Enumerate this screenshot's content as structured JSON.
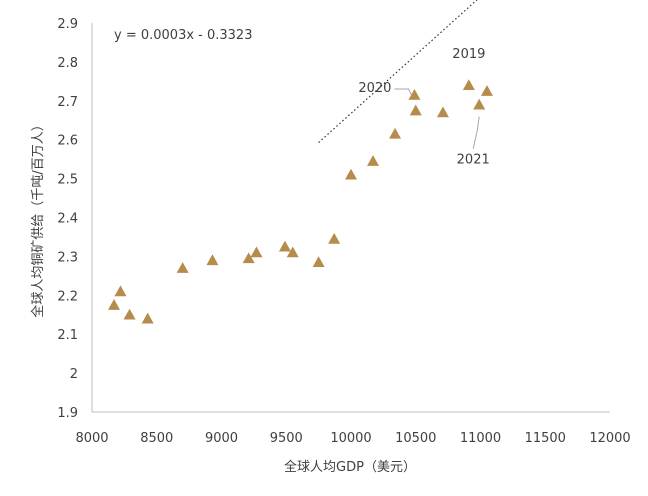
{
  "chart_data": {
    "type": "scatter",
    "xlabel": "全球人均GDP（美元）",
    "ylabel": "全球人均铜矿供给（千吨/百万人）",
    "xlim": [
      8000,
      12000
    ],
    "ylim": [
      1.9,
      2.9
    ],
    "xticks": [
      8000,
      8500,
      9000,
      9500,
      10000,
      10500,
      11000,
      11500,
      12000
    ],
    "yticks": [
      1.9,
      2.0,
      2.1,
      2.2,
      2.3,
      2.4,
      2.5,
      2.6,
      2.7,
      2.8,
      2.9
    ],
    "ytick_labels": [
      "1.9",
      "2",
      "2.1",
      "2.2",
      "2.3",
      "2.4",
      "2.5",
      "2.6",
      "2.7",
      "2.8",
      "2.9"
    ],
    "grid": false,
    "marker": "triangle",
    "marker_color": "#B68C4C",
    "points": [
      {
        "x": 8170,
        "y": 2.175
      },
      {
        "x": 8220,
        "y": 2.21
      },
      {
        "x": 8290,
        "y": 2.15
      },
      {
        "x": 8430,
        "y": 2.14
      },
      {
        "x": 8700,
        "y": 2.27
      },
      {
        "x": 8930,
        "y": 2.29
      },
      {
        "x": 9210,
        "y": 2.295
      },
      {
        "x": 9270,
        "y": 2.31
      },
      {
        "x": 9490,
        "y": 2.325
      },
      {
        "x": 9550,
        "y": 2.31
      },
      {
        "x": 9750,
        "y": 2.285
      },
      {
        "x": 9870,
        "y": 2.345
      },
      {
        "x": 10000,
        "y": 2.51
      },
      {
        "x": 10170,
        "y": 2.545
      },
      {
        "x": 10340,
        "y": 2.615
      },
      {
        "x": 10490,
        "y": 2.715
      },
      {
        "x": 10500,
        "y": 2.675
      },
      {
        "x": 10710,
        "y": 2.67
      },
      {
        "x": 10910,
        "y": 2.74
      },
      {
        "x": 10990,
        "y": 2.69
      },
      {
        "x": 11050,
        "y": 2.725
      }
    ],
    "trendline": {
      "equation": "y = 0.0003x - 0.3323",
      "slope": 0.0003,
      "intercept": -0.3323,
      "x_range": [
        9750,
        11350
      ],
      "style": "dotted",
      "color": "#333333"
    },
    "annotations": [
      {
        "text": "2019",
        "x": 10910,
        "y": 2.74
      },
      {
        "text": "2020",
        "x": 10490,
        "y": 2.715
      },
      {
        "text": "2021",
        "x": 10990,
        "y": 2.69
      }
    ]
  }
}
